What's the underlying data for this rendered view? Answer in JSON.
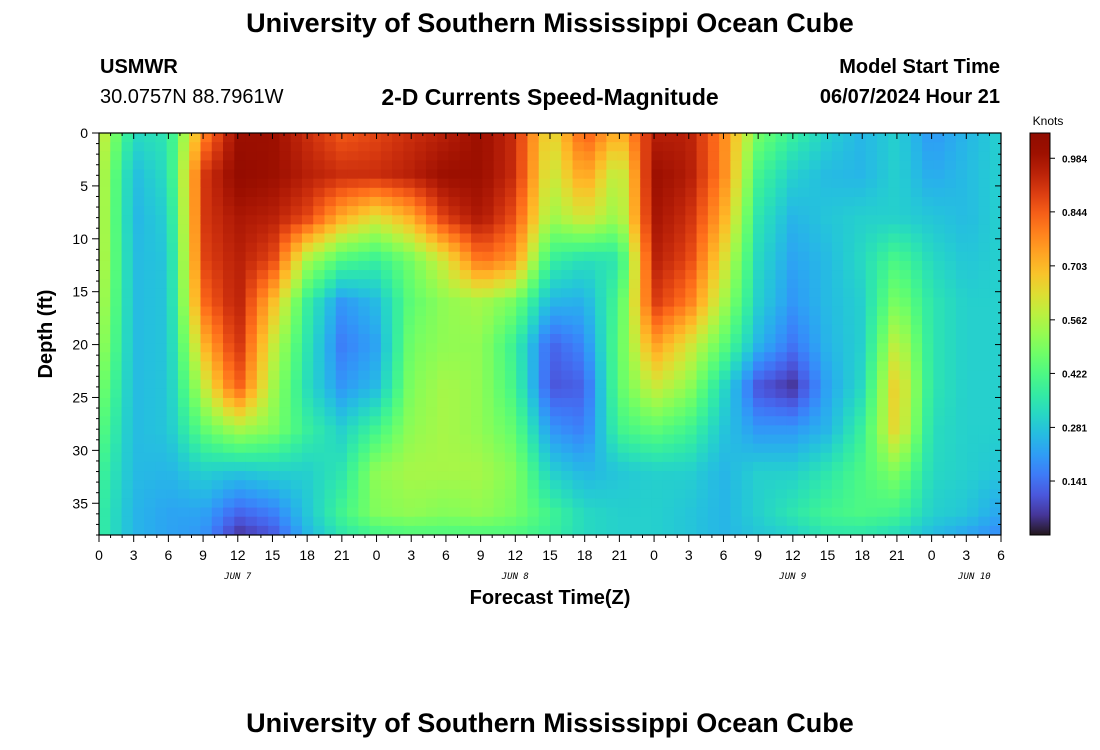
{
  "header": {
    "title": "University of Southern Mississippi Ocean Cube",
    "station": "USMWR",
    "coordinates": "30.0757N  88.7961W",
    "subtitle": "2-D Currents Speed-Magnitude",
    "model_start_label": "Model Start Time",
    "model_start_value": "06/07/2024 Hour 21"
  },
  "footer": {
    "title": "University of Southern Mississippi Ocean Cube"
  },
  "colorbar": {
    "unit": "Knots",
    "tick_labels": [
      "0.141",
      "0.281",
      "0.422",
      "0.562",
      "0.703",
      "0.844",
      "0.984"
    ],
    "colormap": "turbo"
  },
  "chart_data": {
    "type": "heatmap",
    "title": "2-D Currents Speed-Magnitude",
    "xlabel": "Forecast Time(Z)",
    "ylabel": "Depth (ft)",
    "x_tick_labels": [
      "0",
      "3",
      "6",
      "9",
      "12",
      "15",
      "18",
      "21",
      "0",
      "3",
      "6",
      "9",
      "12",
      "15",
      "18",
      "21",
      "0",
      "3",
      "6",
      "9",
      "12",
      "15",
      "18",
      "21",
      "0",
      "3",
      "6"
    ],
    "date_labels": [
      "JUN 7",
      "JUN 8",
      "JUN 9",
      "JUN 10"
    ],
    "y_tick_labels": [
      "0",
      "5",
      "10",
      "15",
      "20",
      "25",
      "30",
      "35"
    ],
    "xlim_hours_since_jun7_00z": [
      0,
      78
    ],
    "ylim_ft": [
      0,
      38
    ],
    "y_inverted": true,
    "color_range_knots": [
      0.0,
      1.05
    ],
    "grid": false,
    "colorbar_position": "right",
    "z_grid": {
      "x_hours_since_jun7_00z": [
        0,
        3,
        6,
        9,
        12,
        15,
        18,
        21,
        24,
        27,
        30,
        33,
        36,
        39,
        42,
        45,
        48,
        51,
        54,
        57,
        60,
        63,
        66,
        69,
        72,
        75,
        78
      ],
      "depth_ft": [
        0,
        4,
        8,
        12,
        16,
        20,
        24,
        28,
        32,
        36,
        38
      ],
      "speed_knots": [
        [
          0.62,
          0.32,
          0.35,
          0.78,
          1.0,
          1.0,
          0.92,
          0.85,
          0.88,
          0.92,
          0.95,
          1.0,
          0.92,
          0.62,
          0.85,
          0.7,
          0.95,
          0.95,
          0.78,
          0.48,
          0.38,
          0.3,
          0.25,
          0.3,
          0.2,
          0.25,
          0.3
        ],
        [
          0.6,
          0.26,
          0.33,
          0.9,
          1.02,
          1.0,
          0.95,
          0.92,
          0.92,
          0.95,
          1.0,
          1.0,
          0.92,
          0.58,
          0.75,
          0.55,
          1.0,
          0.96,
          0.78,
          0.4,
          0.3,
          0.26,
          0.25,
          0.3,
          0.23,
          0.26,
          0.3
        ],
        [
          0.6,
          0.25,
          0.3,
          0.9,
          0.97,
          0.95,
          0.88,
          0.72,
          0.62,
          0.72,
          0.9,
          0.97,
          0.86,
          0.53,
          0.62,
          0.52,
          0.98,
          0.92,
          0.72,
          0.35,
          0.25,
          0.28,
          0.3,
          0.3,
          0.28,
          0.26,
          0.3
        ],
        [
          0.6,
          0.26,
          0.28,
          0.88,
          0.95,
          0.88,
          0.55,
          0.42,
          0.38,
          0.48,
          0.62,
          0.82,
          0.75,
          0.38,
          0.33,
          0.35,
          0.95,
          0.88,
          0.63,
          0.32,
          0.22,
          0.26,
          0.32,
          0.42,
          0.32,
          0.28,
          0.3
        ],
        [
          0.58,
          0.26,
          0.28,
          0.82,
          0.95,
          0.7,
          0.38,
          0.2,
          0.26,
          0.45,
          0.52,
          0.55,
          0.48,
          0.25,
          0.24,
          0.42,
          0.9,
          0.8,
          0.55,
          0.3,
          0.2,
          0.26,
          0.3,
          0.5,
          0.35,
          0.3,
          0.3
        ],
        [
          0.55,
          0.26,
          0.28,
          0.7,
          0.92,
          0.6,
          0.35,
          0.16,
          0.22,
          0.48,
          0.52,
          0.52,
          0.38,
          0.12,
          0.18,
          0.45,
          0.75,
          0.62,
          0.45,
          0.25,
          0.15,
          0.25,
          0.3,
          0.6,
          0.35,
          0.3,
          0.3
        ],
        [
          0.5,
          0.26,
          0.28,
          0.58,
          0.85,
          0.55,
          0.33,
          0.2,
          0.26,
          0.5,
          0.55,
          0.52,
          0.4,
          0.1,
          0.12,
          0.45,
          0.6,
          0.52,
          0.32,
          0.1,
          0.05,
          0.22,
          0.32,
          0.68,
          0.35,
          0.3,
          0.3
        ],
        [
          0.45,
          0.26,
          0.28,
          0.45,
          0.55,
          0.5,
          0.38,
          0.3,
          0.4,
          0.52,
          0.55,
          0.52,
          0.45,
          0.2,
          0.16,
          0.4,
          0.45,
          0.4,
          0.28,
          0.2,
          0.2,
          0.25,
          0.38,
          0.66,
          0.33,
          0.3,
          0.3
        ],
        [
          0.4,
          0.26,
          0.25,
          0.3,
          0.28,
          0.3,
          0.3,
          0.35,
          0.52,
          0.55,
          0.55,
          0.55,
          0.5,
          0.3,
          0.25,
          0.28,
          0.3,
          0.3,
          0.25,
          0.3,
          0.3,
          0.35,
          0.42,
          0.5,
          0.32,
          0.3,
          0.28
        ],
        [
          0.38,
          0.25,
          0.22,
          0.22,
          0.12,
          0.16,
          0.28,
          0.4,
          0.5,
          0.52,
          0.5,
          0.52,
          0.48,
          0.4,
          0.32,
          0.3,
          0.3,
          0.28,
          0.25,
          0.3,
          0.35,
          0.4,
          0.42,
          0.4,
          0.3,
          0.28,
          0.22
        ],
        [
          0.38,
          0.25,
          0.22,
          0.2,
          0.05,
          0.1,
          0.25,
          0.35,
          0.4,
          0.42,
          0.42,
          0.42,
          0.42,
          0.38,
          0.32,
          0.3,
          0.3,
          0.28,
          0.25,
          0.28,
          0.3,
          0.35,
          0.35,
          0.32,
          0.26,
          0.22,
          0.18
        ]
      ]
    }
  }
}
